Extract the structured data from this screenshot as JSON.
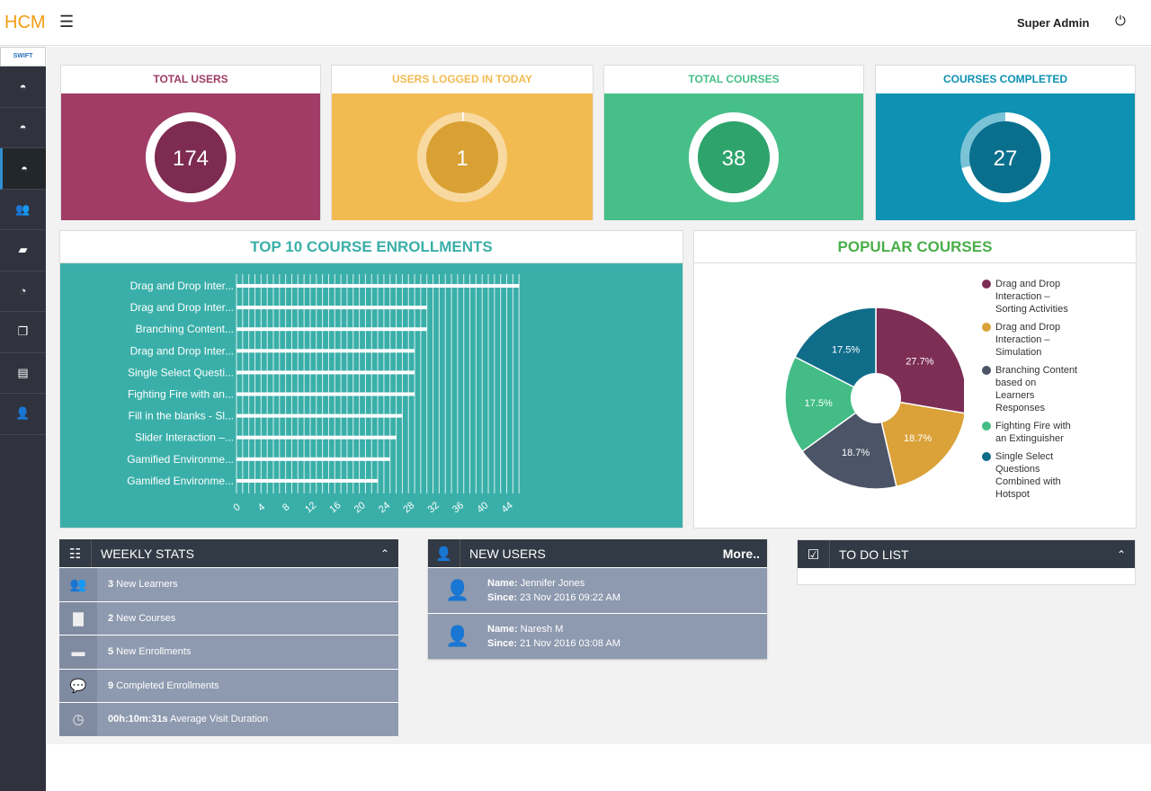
{
  "header": {
    "logo": "HCM",
    "user": "Super Admin"
  },
  "sidebar": {
    "brand": "SWIFT",
    "items": [
      "dashboard-icon",
      "dashboard-icon",
      "dashboard-icon",
      "users-icon",
      "book-icon",
      "pie-chart-icon",
      "copy-icon",
      "document-icon",
      "user-icon"
    ],
    "active_index": 2
  },
  "cards": [
    {
      "title": "TOTAL USERS",
      "value": "174",
      "color": "#a03c66",
      "title_color": "#a03c66",
      "inner": "#7d2b50",
      "fraction": 1
    },
    {
      "title": "USERS LOGGED IN TODAY",
      "value": "1",
      "color": "#f2bb52",
      "title_color": "#f2bb52",
      "inner": "#d9a034",
      "fraction": 0.006
    },
    {
      "title": "TOTAL COURSES",
      "value": "38",
      "color": "#47bf89",
      "title_color": "#47bf89",
      "inner": "#2ea36c",
      "fraction": 1
    },
    {
      "title": "COURSES COMPLETED",
      "value": "27",
      "color": "#0e91b3",
      "title_color": "#0e91b3",
      "inner": "#0a6f8c",
      "fraction": 0.71
    }
  ],
  "enrollments": {
    "title": "TOP 10 COURSE ENROLLMENTS"
  },
  "popular": {
    "title": "POPULAR COURSES"
  },
  "chart_data": [
    {
      "type": "bar",
      "orientation": "horizontal",
      "title": "TOP 10 COURSE ENROLLMENTS",
      "categories": [
        "Drag and Drop Inter...",
        "Drag and Drop Inter...",
        "Branching Content...",
        "Drag and Drop Inter...",
        "Single Select Questi...",
        "Fighting Fire with an...",
        "Fill in the blanks - Sl...",
        "Slider Interaction –...",
        "Gamified Environme...",
        "Gamified Environme..."
      ],
      "values": [
        46,
        31,
        31,
        29,
        29,
        29,
        27,
        26,
        25,
        23
      ],
      "xticks": [
        0,
        4,
        8,
        12,
        16,
        20,
        24,
        28,
        32,
        36,
        40,
        44
      ],
      "xlim": [
        0,
        46
      ],
      "grid": true
    },
    {
      "type": "pie",
      "title": "POPULAR COURSES",
      "legend": "right",
      "labels": [
        "Drag and Drop Interaction – Sorting Activities",
        "Drag and Drop Interaction – Simulation",
        "Branching Content based on Learners Responses",
        "Fighting Fire with an Extinguisher",
        "Single Select Questions Combined with Hotspot"
      ],
      "legend_lines": [
        [
          "Drag and Drop",
          "Interaction –",
          "Sorting Activities"
        ],
        [
          "Drag and Drop",
          "Interaction –",
          "Simulation"
        ],
        [
          "Branching Content",
          "based on",
          "Learners",
          "Responses"
        ],
        [
          "Fighting Fire with",
          "an Extinguisher"
        ],
        [
          "Single Select",
          "Questions",
          "Combined with",
          "Hotspot"
        ]
      ],
      "values": [
        27.7,
        18.7,
        18.7,
        17.5,
        17.5
      ],
      "value_labels": [
        "27.7%",
        "18.7%",
        "18.7%",
        "17.5%",
        "17.5%"
      ],
      "colors": [
        "#7d2e55",
        "#dba23a",
        "#4c5467",
        "#43bd85",
        "#0f6d8a"
      ]
    }
  ],
  "weekly": {
    "title": "WEEKLY STATS",
    "rows": [
      {
        "icon": "users-icon",
        "glyph": "👥",
        "bold": "3",
        "text": " New Learners"
      },
      {
        "icon": "file-icon",
        "glyph": "▇",
        "bold": "2",
        "text": " New Courses"
      },
      {
        "icon": "minus-icon",
        "glyph": "▬",
        "bold": "5",
        "text": " New Enrollments"
      },
      {
        "icon": "comment-icon",
        "glyph": "💬",
        "bold": "9",
        "text": " Completed Enrollments"
      },
      {
        "icon": "clock-icon",
        "glyph": "◷",
        "bold": "00h:10m:31s",
        "text": " Average Visit Duration"
      }
    ]
  },
  "new_users": {
    "title": "NEW USERS",
    "more": "More..",
    "name_label": "Name:",
    "since_label": "Since:",
    "users": [
      {
        "name": " Jennifer Jones",
        "since": " 23 Nov 2016 09:22 AM"
      },
      {
        "name": " Naresh M",
        "since": " 21 Nov 2016 03:08 AM"
      }
    ]
  },
  "todo": {
    "title": "TO DO LIST"
  }
}
